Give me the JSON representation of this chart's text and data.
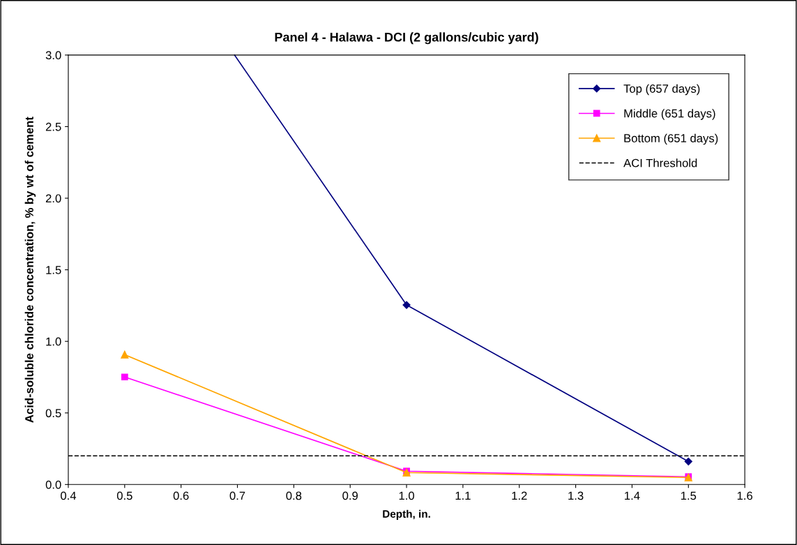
{
  "chart_data": {
    "type": "line",
    "title": "Panel 4 - Halawa - DCI (2 gallons/cubic yard)",
    "xlabel": "Depth, in.",
    "ylabel": "Acid-soluble chloride concentration, % by wt of cement",
    "x": [
      0.5,
      1.0,
      1.5
    ],
    "series": [
      {
        "name": "Top (657 days)",
        "color": "#000080",
        "x": [
          0.695,
          1.0,
          1.5
        ],
        "values": [
          3.0,
          1.254,
          0.161
        ],
        "marker": "diamond"
      },
      {
        "name": "Middle (651 days)",
        "color": "#ff00ff",
        "values": [
          0.751,
          0.093,
          0.054
        ],
        "marker": "square"
      },
      {
        "name": "Bottom (651 days)",
        "color": "#ffa500",
        "values": [
          0.907,
          0.083,
          0.049
        ],
        "marker": "triangle"
      }
    ],
    "ref_lines": [
      {
        "axis": "y",
        "value": 0.2,
        "label": "ACI Threshold",
        "color": "#000000",
        "line_style": "dashed"
      }
    ],
    "xlim": [
      0.4,
      1.6
    ],
    "xticks": [
      {
        "value": 0.4,
        "label": "0.4"
      },
      {
        "value": 0.5,
        "label": "0.5"
      },
      {
        "value": 0.6,
        "label": "0.6"
      },
      {
        "value": 0.7,
        "label": "0.7"
      },
      {
        "value": 0.8,
        "label": "0.8"
      },
      {
        "value": 0.9,
        "label": "0.9"
      },
      {
        "value": 1.0,
        "label": "1.0"
      },
      {
        "value": 1.1,
        "label": "1.1"
      },
      {
        "value": 1.2,
        "label": "1.2"
      },
      {
        "value": 1.3,
        "label": "1.3"
      },
      {
        "value": 1.4,
        "label": "1.4"
      },
      {
        "value": 1.5,
        "label": "1.5"
      },
      {
        "value": 1.6,
        "label": "1.6"
      }
    ],
    "ylim": [
      0,
      3.0
    ],
    "yticks": [
      {
        "value": 0,
        "label": "0.0"
      },
      {
        "value": 0.5,
        "label": "0.5"
      },
      {
        "value": 1.0,
        "label": "1.0"
      },
      {
        "value": 1.5,
        "label": "1.5"
      },
      {
        "value": 2.0,
        "label": "2.0"
      },
      {
        "value": 2.5,
        "label": "2.5"
      },
      {
        "value": 3.0,
        "label": "3.0"
      }
    ],
    "grid": false,
    "legend": "top right",
    "line_style": "solid"
  }
}
